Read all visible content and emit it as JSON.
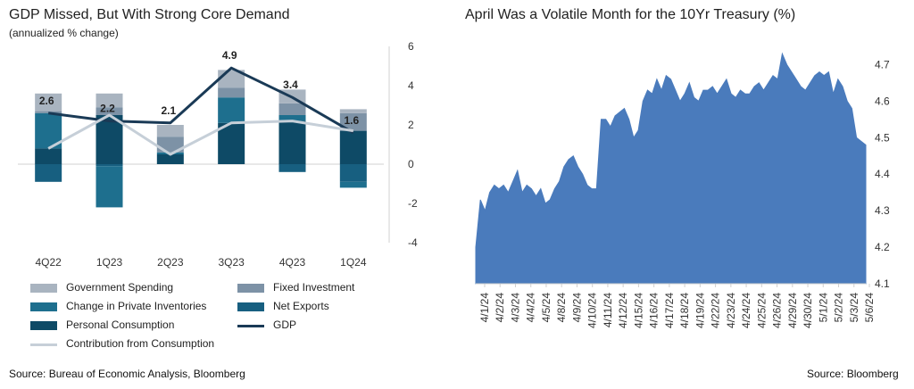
{
  "left": {
    "title": "GDP Missed, But With Strong Core Demand",
    "subtitle": "(annualized % change)",
    "source": "Source: Bureau of Economic Analysis, Bloomberg"
  },
  "right": {
    "title": "April Was a Volatile Month for the 10Yr Treasury (%)",
    "source": "Source:  Bloomberg"
  },
  "colors": {
    "government": "#a9b4c0",
    "fixed": "#7d92a6",
    "inventories": "#1e6f8e",
    "net_exports": "#175f80",
    "consumption": "#0e4a66",
    "gdp_line": "#1a3a56",
    "contribution_line": "#c6cfd8",
    "treasury_fill": "#4a7bbc"
  },
  "chart_data": [
    {
      "type": "bar",
      "stacked": true,
      "categories": [
        "4Q22",
        "1Q23",
        "2Q23",
        "3Q23",
        "4Q23",
        "1Q24"
      ],
      "series": [
        {
          "name": "Personal Consumption",
          "key": "consumption",
          "values": [
            0.8,
            2.5,
            0.5,
            2.1,
            2.2,
            1.7
          ]
        },
        {
          "name": "Net Exports",
          "key": "net_exports",
          "values": [
            -0.9,
            -0.1,
            0.0,
            0.0,
            -0.4,
            -0.9
          ]
        },
        {
          "name": "Change in Private Inventories",
          "key": "inventories",
          "values": [
            1.8,
            -2.1,
            0.1,
            1.3,
            0.3,
            -0.3
          ]
        },
        {
          "name": "Fixed Investment",
          "key": "fixed",
          "values": [
            0.1,
            0.4,
            0.8,
            0.5,
            0.6,
            0.9
          ]
        },
        {
          "name": "Government Spending",
          "key": "government",
          "values": [
            0.9,
            0.7,
            0.6,
            0.9,
            0.7,
            0.2
          ]
        }
      ],
      "lines": [
        {
          "name": "GDP",
          "key": "gdp_line",
          "values": [
            2.6,
            2.2,
            2.1,
            4.9,
            3.4,
            1.6
          ],
          "labels": [
            "2.6",
            "2.2",
            "2.1",
            "4.9",
            "3.4",
            "1.6"
          ]
        },
        {
          "name": "Contribution from Consumption",
          "key": "contribution_line",
          "values": [
            0.8,
            2.5,
            0.5,
            2.1,
            2.2,
            1.7
          ]
        }
      ],
      "ylim": [
        -4,
        6
      ],
      "yticks": [
        "6",
        "4",
        "2",
        "0",
        "-2",
        "-4"
      ],
      "ytick_values": [
        6,
        4,
        2,
        0,
        -2,
        -4
      ],
      "legend": [
        {
          "label": "Government Spending",
          "key": "government",
          "kind": "box"
        },
        {
          "label": "Fixed Investment",
          "key": "fixed",
          "kind": "box"
        },
        {
          "label": "Change in Private Inventories",
          "key": "inventories",
          "kind": "box"
        },
        {
          "label": "Net Exports",
          "key": "net_exports",
          "kind": "box"
        },
        {
          "label": "Personal Consumption",
          "key": "consumption",
          "kind": "box"
        },
        {
          "label": "GDP",
          "key": "gdp_line",
          "kind": "line"
        },
        {
          "label": "Contribution from Consumption",
          "key": "contribution_line",
          "kind": "line"
        }
      ],
      "legend_position": "bottom"
    },
    {
      "type": "area",
      "ylim": [
        4.1,
        4.75
      ],
      "yticks": [
        "4.7",
        "4.6",
        "4.5",
        "4.4",
        "4.3",
        "4.2",
        "4.1"
      ],
      "ytick_values": [
        4.7,
        4.6,
        4.5,
        4.4,
        4.3,
        4.2,
        4.1
      ],
      "xticks": [
        "4/1/24",
        "4/2/24",
        "4/3/24",
        "4/4/24",
        "4/5/24",
        "4/8/24",
        "4/9/24",
        "4/10/24",
        "4/11/24",
        "4/12/24",
        "4/15/24",
        "4/16/24",
        "4/17/24",
        "4/18/24",
        "4/19/24",
        "4/22/24",
        "4/23/24",
        "4/24/24",
        "4/25/24",
        "4/26/24",
        "4/29/24",
        "4/30/24",
        "5/1/24",
        "5/2/24",
        "5/3/24",
        "5/6/24"
      ],
      "y": [
        4.2,
        4.33,
        4.3,
        4.35,
        4.37,
        4.36,
        4.37,
        4.35,
        4.38,
        4.41,
        4.35,
        4.37,
        4.36,
        4.34,
        4.36,
        4.32,
        4.33,
        4.36,
        4.38,
        4.42,
        4.44,
        4.45,
        4.42,
        4.4,
        4.37,
        4.36,
        4.36,
        4.55,
        4.55,
        4.53,
        4.56,
        4.57,
        4.58,
        4.55,
        4.5,
        4.52,
        4.6,
        4.63,
        4.62,
        4.66,
        4.63,
        4.67,
        4.66,
        4.63,
        4.6,
        4.62,
        4.65,
        4.61,
        4.6,
        4.63,
        4.63,
        4.64,
        4.62,
        4.64,
        4.66,
        4.62,
        4.61,
        4.63,
        4.62,
        4.62,
        4.64,
        4.65,
        4.63,
        4.65,
        4.67,
        4.66,
        4.73,
        4.7,
        4.68,
        4.66,
        4.64,
        4.63,
        4.65,
        4.67,
        4.68,
        4.67,
        4.68,
        4.62,
        4.66,
        4.64,
        4.6,
        4.58,
        4.5,
        4.49,
        4.48
      ]
    }
  ]
}
